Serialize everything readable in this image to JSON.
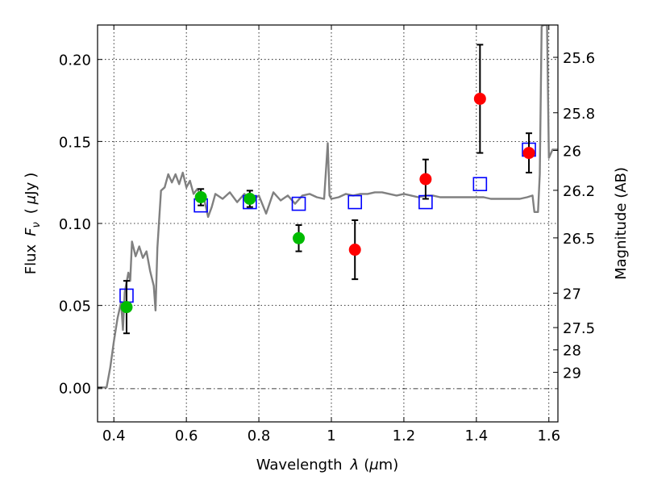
{
  "chart_data": {
    "type": "scatter",
    "title": "",
    "xlabel": "Wavelength",
    "xlabel_symbol": "λ",
    "xlabel_unit_open": "(",
    "xlabel_unit_mu": "μ",
    "xlabel_unit_rest": "m)",
    "ylabel": "Flux",
    "ylabel_symbol": "F",
    "ylabel_subscript": "ν",
    "ylabel_unit_open": "(",
    "ylabel_unit_mu": "μ",
    "ylabel_unit_rest": "Jy",
    "ylabel_unit_close": ")",
    "y2label": "Magnitude (AB)",
    "xlim": [
      0.355,
      1.625
    ],
    "ylim": [
      -0.021,
      0.221
    ],
    "x_ticks": [
      0.4,
      0.6,
      0.8,
      1.0,
      1.2,
      1.4,
      1.6
    ],
    "x_tick_labels": [
      "0.4",
      "0.6",
      "0.8",
      "1",
      "1.2",
      "1.4",
      "1.6"
    ],
    "y_ticks": [
      0.0,
      0.05,
      0.1,
      0.15,
      0.2
    ],
    "y_tick_labels": [
      "0.00",
      "0.05",
      "0.10",
      "0.15",
      "0.20"
    ],
    "y2_ticks": [
      {
        "label": "25.6",
        "flux": 0.2013
      },
      {
        "label": "25.8",
        "flux": 0.1675
      },
      {
        "label": "26",
        "flux": 0.1445
      },
      {
        "label": "26.2",
        "flux": 0.1202
      },
      {
        "label": "26.5",
        "flux": 0.0912
      },
      {
        "label": "27",
        "flux": 0.0575
      },
      {
        "label": "27.5",
        "flux": 0.0365
      },
      {
        "label": "28",
        "flux": 0.0229
      },
      {
        "label": "29",
        "flux": 0.0092
      }
    ],
    "grid": true,
    "colors": {
      "spectrum": "#808080",
      "model_box": "#0000ff",
      "green_point": "#00bb00",
      "red_point": "#ff0000",
      "error_bar": "#000000"
    },
    "series": [
      {
        "kind": "line",
        "color": "#808080",
        "points": [
          [
            0.355,
            0.0
          ],
          [
            0.38,
            0.0
          ],
          [
            0.39,
            0.012
          ],
          [
            0.4,
            0.028
          ],
          [
            0.41,
            0.042
          ],
          [
            0.42,
            0.052
          ],
          [
            0.425,
            0.035
          ],
          [
            0.43,
            0.058
          ],
          [
            0.44,
            0.07
          ],
          [
            0.445,
            0.065
          ],
          [
            0.45,
            0.089
          ],
          [
            0.46,
            0.08
          ],
          [
            0.47,
            0.086
          ],
          [
            0.48,
            0.079
          ],
          [
            0.49,
            0.083
          ],
          [
            0.5,
            0.071
          ],
          [
            0.51,
            0.062
          ],
          [
            0.515,
            0.047
          ],
          [
            0.52,
            0.085
          ],
          [
            0.53,
            0.12
          ],
          [
            0.54,
            0.122
          ],
          [
            0.55,
            0.13
          ],
          [
            0.56,
            0.125
          ],
          [
            0.57,
            0.13
          ],
          [
            0.58,
            0.124
          ],
          [
            0.59,
            0.131
          ],
          [
            0.6,
            0.122
          ],
          [
            0.61,
            0.126
          ],
          [
            0.62,
            0.118
          ],
          [
            0.63,
            0.121
          ],
          [
            0.65,
            0.114
          ],
          [
            0.66,
            0.104
          ],
          [
            0.67,
            0.11
          ],
          [
            0.68,
            0.118
          ],
          [
            0.7,
            0.115
          ],
          [
            0.72,
            0.119
          ],
          [
            0.74,
            0.113
          ],
          [
            0.76,
            0.118
          ],
          [
            0.78,
            0.114
          ],
          [
            0.8,
            0.117
          ],
          [
            0.82,
            0.106
          ],
          [
            0.84,
            0.119
          ],
          [
            0.86,
            0.114
          ],
          [
            0.88,
            0.117
          ],
          [
            0.9,
            0.112
          ],
          [
            0.92,
            0.117
          ],
          [
            0.94,
            0.118
          ],
          [
            0.96,
            0.116
          ],
          [
            0.98,
            0.115
          ],
          [
            0.99,
            0.149
          ],
          [
            0.995,
            0.117
          ],
          [
            1.0,
            0.115
          ],
          [
            1.02,
            0.116
          ],
          [
            1.04,
            0.118
          ],
          [
            1.06,
            0.117
          ],
          [
            1.08,
            0.118
          ],
          [
            1.1,
            0.118
          ],
          [
            1.12,
            0.119
          ],
          [
            1.14,
            0.119
          ],
          [
            1.16,
            0.118
          ],
          [
            1.18,
            0.117
          ],
          [
            1.2,
            0.118
          ],
          [
            1.22,
            0.117
          ],
          [
            1.24,
            0.116
          ],
          [
            1.26,
            0.117
          ],
          [
            1.28,
            0.117
          ],
          [
            1.3,
            0.116
          ],
          [
            1.32,
            0.116
          ],
          [
            1.34,
            0.116
          ],
          [
            1.36,
            0.116
          ],
          [
            1.38,
            0.116
          ],
          [
            1.4,
            0.116
          ],
          [
            1.42,
            0.116
          ],
          [
            1.44,
            0.115
          ],
          [
            1.46,
            0.115
          ],
          [
            1.48,
            0.115
          ],
          [
            1.5,
            0.115
          ],
          [
            1.52,
            0.115
          ],
          [
            1.54,
            0.116
          ],
          [
            1.555,
            0.117
          ],
          [
            1.56,
            0.107
          ],
          [
            1.57,
            0.107
          ],
          [
            1.575,
            0.13
          ],
          [
            1.58,
            0.22
          ],
          [
            1.585,
            0.221
          ],
          [
            1.59,
            0.221
          ],
          [
            1.595,
            0.221
          ],
          [
            1.6,
            0.14
          ],
          [
            1.61,
            0.145
          ],
          [
            1.625,
            0.145
          ]
        ]
      },
      {
        "kind": "box",
        "color": "#0000ff",
        "points": [
          {
            "x": 0.435,
            "y": 0.056
          },
          {
            "x": 0.64,
            "y": 0.111
          },
          {
            "x": 0.775,
            "y": 0.113
          },
          {
            "x": 0.91,
            "y": 0.112
          },
          {
            "x": 1.065,
            "y": 0.113
          },
          {
            "x": 1.26,
            "y": 0.113
          },
          {
            "x": 1.41,
            "y": 0.124
          },
          {
            "x": 1.545,
            "y": 0.145
          }
        ]
      },
      {
        "kind": "point",
        "color": "#00bb00",
        "points": [
          {
            "x": 0.435,
            "y": 0.049,
            "err": 0.016
          },
          {
            "x": 0.64,
            "y": 0.116,
            "err": 0.005
          },
          {
            "x": 0.775,
            "y": 0.115,
            "err": 0.005
          },
          {
            "x": 0.91,
            "y": 0.091,
            "err": 0.008
          }
        ]
      },
      {
        "kind": "point",
        "color": "#ff0000",
        "points": [
          {
            "x": 1.065,
            "y": 0.084,
            "err": 0.018
          },
          {
            "x": 1.26,
            "y": 0.127,
            "err": 0.012
          },
          {
            "x": 1.41,
            "y": 0.176,
            "err": 0.033
          },
          {
            "x": 1.545,
            "y": 0.143,
            "err": 0.012
          }
        ]
      }
    ]
  }
}
